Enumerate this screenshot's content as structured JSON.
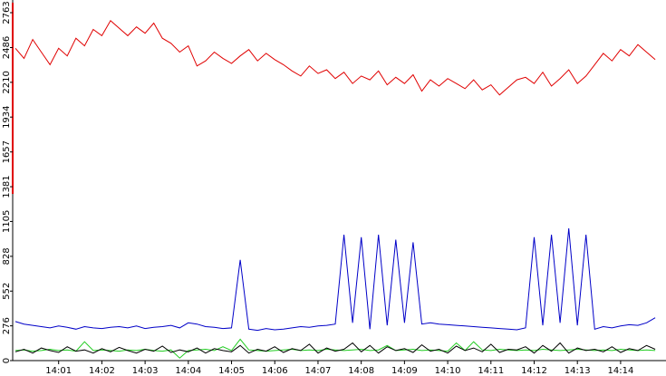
{
  "chart_data": {
    "type": "line",
    "x": [
      0,
      0.2,
      0.4,
      0.6,
      0.8,
      1.0,
      1.2,
      1.4,
      1.6,
      1.8,
      2.0,
      2.2,
      2.4,
      2.6,
      2.8,
      3.0,
      3.2,
      3.4,
      3.6,
      3.8,
      4.0,
      4.2,
      4.4,
      4.6,
      4.8,
      5.0,
      5.2,
      5.4,
      5.6,
      5.8,
      6.0,
      6.2,
      6.4,
      6.6,
      6.8,
      7.0,
      7.2,
      7.4,
      7.6,
      7.8,
      8.0,
      8.2,
      8.4,
      8.6,
      8.8,
      9.0,
      9.2,
      9.4,
      9.6,
      9.8,
      10.0,
      10.2,
      10.4,
      10.6,
      10.8,
      11.0,
      11.2,
      11.4,
      11.6,
      11.8,
      12.0,
      12.2,
      12.4,
      12.6,
      12.8,
      13.0,
      13.2,
      13.4,
      13.6,
      13.8,
      14.0,
      14.2,
      14.4,
      14.6,
      14.8
    ],
    "series": [
      {
        "color": "#e00000",
        "values": [
          2480,
          2400,
          2550,
          2450,
          2350,
          2480,
          2420,
          2560,
          2500,
          2630,
          2580,
          2700,
          2640,
          2580,
          2650,
          2600,
          2680,
          2560,
          2520,
          2450,
          2500,
          2340,
          2380,
          2450,
          2400,
          2360,
          2420,
          2470,
          2380,
          2440,
          2390,
          2350,
          2300,
          2260,
          2340,
          2280,
          2310,
          2240,
          2290,
          2200,
          2260,
          2230,
          2300,
          2190,
          2250,
          2200,
          2270,
          2140,
          2230,
          2180,
          2240,
          2200,
          2160,
          2230,
          2150,
          2190,
          2110,
          2170,
          2230,
          2250,
          2200,
          2290,
          2180,
          2240,
          2310,
          2200,
          2260,
          2350,
          2440,
          2380,
          2470,
          2420,
          2510,
          2450,
          2390
        ]
      },
      {
        "color": "#0000c8",
        "values": [
          310,
          290,
          280,
          270,
          260,
          275,
          265,
          250,
          270,
          260,
          255,
          265,
          270,
          260,
          275,
          255,
          265,
          270,
          280,
          260,
          300,
          290,
          270,
          265,
          255,
          260,
          800,
          250,
          240,
          255,
          245,
          250,
          260,
          270,
          265,
          275,
          280,
          290,
          1000,
          300,
          980,
          250,
          1000,
          280,
          960,
          300,
          940,
          290,
          300,
          290,
          285,
          280,
          275,
          270,
          265,
          260,
          255,
          250,
          245,
          260,
          980,
          280,
          1000,
          300,
          1050,
          280,
          1000,
          250,
          270,
          260,
          275,
          285,
          280,
          300,
          340
        ]
      },
      {
        "color": "#000000",
        "values": [
          70,
          90,
          60,
          100,
          80,
          65,
          110,
          75,
          85,
          60,
          95,
          70,
          105,
          80,
          60,
          90,
          75,
          115,
          65,
          85,
          70,
          100,
          60,
          95,
          80,
          70,
          120,
          60,
          90,
          75,
          110,
          65,
          95,
          80,
          130,
          60,
          100,
          75,
          90,
          140,
          70,
          120,
          60,
          110,
          80,
          95,
          65,
          125,
          75,
          90,
          60,
          115,
          80,
          100,
          70,
          130,
          65,
          90,
          85,
          110,
          60,
          120,
          75,
          140,
          60,
          100,
          80,
          90,
          70,
          110,
          65,
          95,
          80,
          120,
          90
        ]
      },
      {
        "color": "#22cc22",
        "values": [
          80,
          85,
          75,
          80,
          90,
          80,
          85,
          75,
          150,
          80,
          85,
          80,
          75,
          85,
          80,
          90,
          80,
          75,
          85,
          20,
          80,
          85,
          90,
          80,
          110,
          80,
          170,
          85,
          80,
          75,
          80,
          85,
          90,
          80,
          85,
          80,
          90,
          85,
          80,
          85,
          90,
          80,
          85,
          120,
          80,
          85,
          90,
          80,
          85,
          80,
          75,
          140,
          80,
          150,
          85,
          80,
          90,
          85,
          80,
          85,
          80,
          90,
          85,
          80,
          85,
          90,
          85,
          80,
          85,
          80,
          90,
          85,
          80,
          85,
          80
        ]
      }
    ],
    "xlim": [
      0,
      15.05
    ],
    "xticks": [
      {
        "value": 1,
        "label": "14:01"
      },
      {
        "value": 2,
        "label": "14:02"
      },
      {
        "value": 3,
        "label": "14:03"
      },
      {
        "value": 4,
        "label": "14:04"
      },
      {
        "value": 5,
        "label": "14:05"
      },
      {
        "value": 6,
        "label": "14:06"
      },
      {
        "value": 7,
        "label": "14:07"
      },
      {
        "value": 8,
        "label": "14:08"
      },
      {
        "value": 9,
        "label": "14:09"
      },
      {
        "value": 10,
        "label": "14:10"
      },
      {
        "value": 11,
        "label": "14:11"
      },
      {
        "value": 12,
        "label": "14:12"
      },
      {
        "value": 13,
        "label": "14:13"
      },
      {
        "value": 14,
        "label": "14:14"
      }
    ],
    "ylim": [
      0,
      2763
    ],
    "yticks": [
      0,
      276,
      552,
      828,
      1105,
      1381,
      1657,
      1934,
      2210,
      2486,
      2763
    ]
  }
}
